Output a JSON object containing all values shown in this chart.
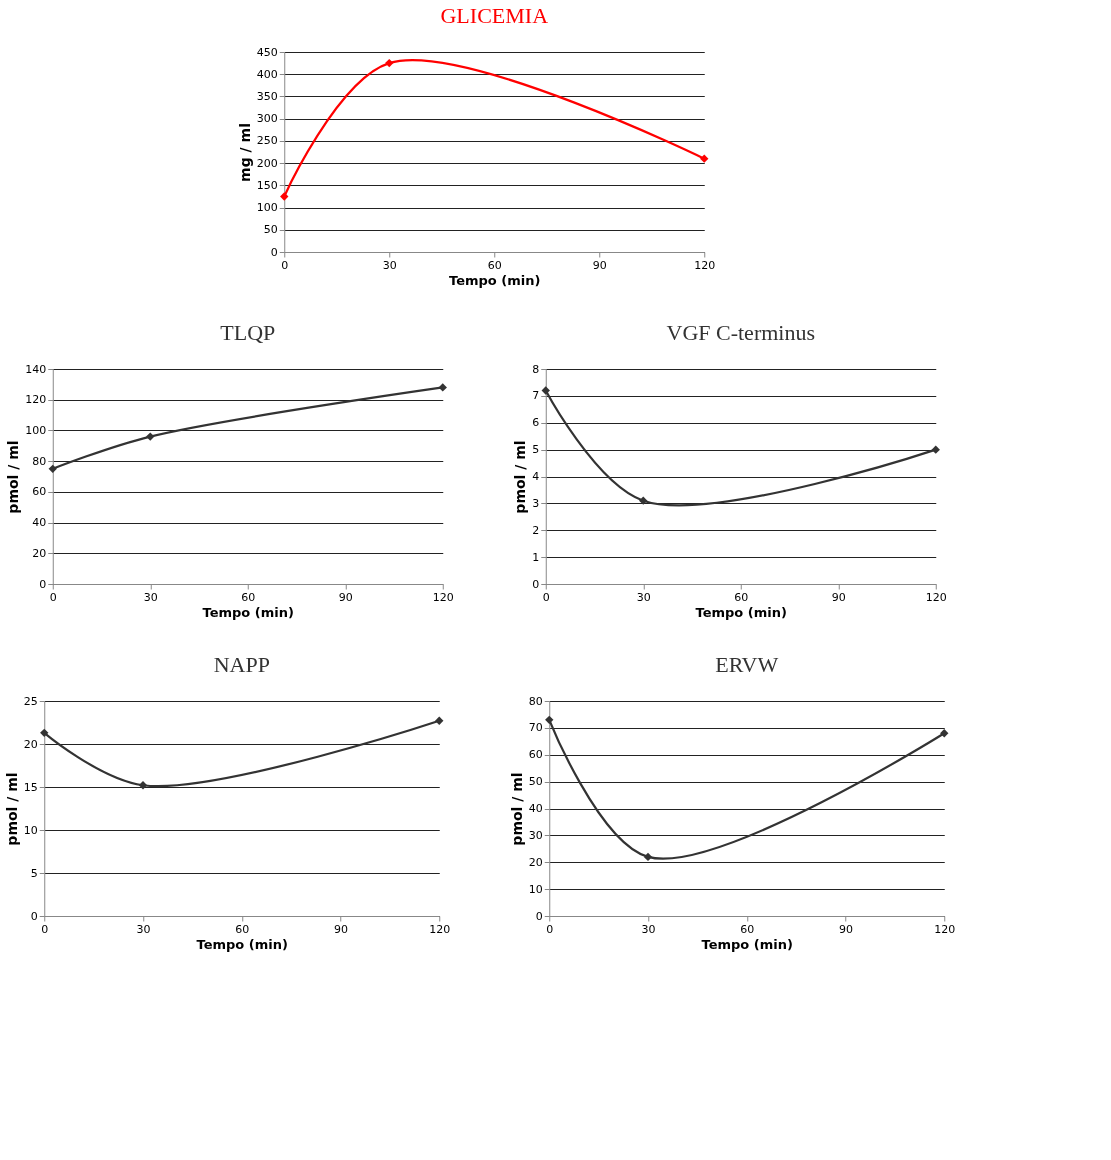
{
  "chart_data": [
    {
      "type": "line",
      "title": "GLICEMIA",
      "xlabel": "Tempo (min)",
      "ylabel": "mg / ml",
      "x": [
        0,
        30,
        120
      ],
      "xlim": [
        0,
        120
      ],
      "xticks": [
        0,
        30,
        60,
        90,
        120
      ],
      "ylim": [
        0,
        450
      ],
      "yticks": [
        0,
        50,
        100,
        150,
        200,
        250,
        300,
        350,
        400,
        450
      ],
      "grid": "y",
      "legend": false,
      "marker": "diamond",
      "line_style": "solid",
      "series": [
        {
          "color": "#ff0000",
          "values": [
            125,
            425,
            210
          ]
        }
      ]
    },
    {
      "type": "line",
      "title": "TLQP",
      "xlabel": "Tempo (min)",
      "ylabel": "pmol / ml",
      "x": [
        0,
        30,
        120
      ],
      "xlim": [
        0,
        120
      ],
      "xticks": [
        0,
        30,
        60,
        90,
        120
      ],
      "ylim": [
        0,
        140
      ],
      "yticks": [
        0,
        20,
        40,
        60,
        80,
        100,
        120,
        140
      ],
      "grid": "y",
      "legend": false,
      "marker": "diamond",
      "line_style": "solid",
      "series": [
        {
          "color": "#333333",
          "values": [
            75,
            96,
            128
          ]
        }
      ]
    },
    {
      "type": "line",
      "title": "VGF C-terminus",
      "xlabel": "Tempo (min)",
      "ylabel": "pmol / ml",
      "x": [
        0,
        30,
        120
      ],
      "xlim": [
        0,
        120
      ],
      "xticks": [
        0,
        30,
        60,
        90,
        120
      ],
      "ylim": [
        0,
        8
      ],
      "yticks": [
        0,
        1,
        2,
        3,
        4,
        5,
        6,
        7,
        8
      ],
      "grid": "y",
      "legend": false,
      "marker": "diamond",
      "line_style": "solid",
      "series": [
        {
          "color": "#333333",
          "values": [
            7.2,
            3.1,
            5.0
          ]
        }
      ]
    },
    {
      "type": "line",
      "title": "NAPP",
      "xlabel": "Tempo (min)",
      "ylabel": "pmol / ml",
      "x": [
        0,
        30,
        120
      ],
      "xlim": [
        0,
        120
      ],
      "xticks": [
        0,
        30,
        60,
        90,
        120
      ],
      "ylim": [
        0,
        25
      ],
      "yticks": [
        0,
        5,
        10,
        15,
        20,
        25
      ],
      "grid": "y",
      "legend": false,
      "marker": "diamond",
      "line_style": "solid",
      "series": [
        {
          "color": "#333333",
          "values": [
            21.3,
            15.2,
            22.7
          ]
        }
      ]
    },
    {
      "type": "line",
      "title": "ERVW",
      "xlabel": "Tempo (min)",
      "ylabel": "pmol / ml",
      "x": [
        0,
        30,
        120
      ],
      "xlim": [
        0,
        120
      ],
      "xticks": [
        0,
        30,
        60,
        90,
        120
      ],
      "ylim": [
        0,
        80
      ],
      "yticks": [
        0,
        10,
        20,
        30,
        40,
        50,
        60,
        70,
        80
      ],
      "grid": "y",
      "legend": false,
      "marker": "diamond",
      "line_style": "solid",
      "series": [
        {
          "color": "#333333",
          "values": [
            73,
            22,
            68
          ]
        }
      ]
    }
  ]
}
